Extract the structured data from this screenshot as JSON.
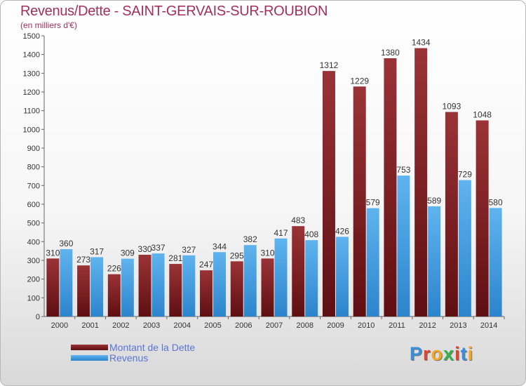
{
  "title": "Revenus/Dette - SAINT-GERVAIS-SUR-ROUBION",
  "subtitle": "(en milliers d'€)",
  "logo": {
    "letters": [
      "P",
      "r",
      "o",
      "x",
      "i",
      "t",
      "i"
    ],
    "colors": [
      "#3a8fd8",
      "#e0452e",
      "#f2a626",
      "#3ab04a",
      "#e0452e",
      "#3a8fd8",
      "#f2a626"
    ]
  },
  "legend": {
    "items": [
      {
        "label": "Montant de la Dette",
        "color": "#7a1f22"
      },
      {
        "label": "Revenus",
        "color": "#3d9be0"
      }
    ]
  },
  "chart_data": {
    "type": "bar",
    "categories": [
      "2000",
      "2001",
      "2002",
      "2003",
      "2004",
      "2005",
      "2006",
      "2007",
      "2008",
      "2009",
      "2010",
      "2011",
      "2012",
      "2013",
      "2014"
    ],
    "series": [
      {
        "name": "Montant de la Dette",
        "color": "#7a1f22",
        "values": [
          310,
          273,
          226,
          330,
          281,
          247,
          295,
          310,
          483,
          1312,
          1229,
          1380,
          1434,
          1093,
          1048
        ]
      },
      {
        "name": "Revenus",
        "color": "#3d9be0",
        "values": [
          360,
          317,
          309,
          337,
          327,
          344,
          382,
          417,
          408,
          426,
          579,
          753,
          589,
          729,
          580
        ]
      }
    ],
    "ylim": [
      0,
      1500
    ],
    "yticks": [
      0,
      100,
      200,
      300,
      400,
      500,
      600,
      700,
      800,
      900,
      1000,
      1100,
      1200,
      1300,
      1400,
      1500
    ],
    "grid": false,
    "legend_position": "bottom-left"
  }
}
